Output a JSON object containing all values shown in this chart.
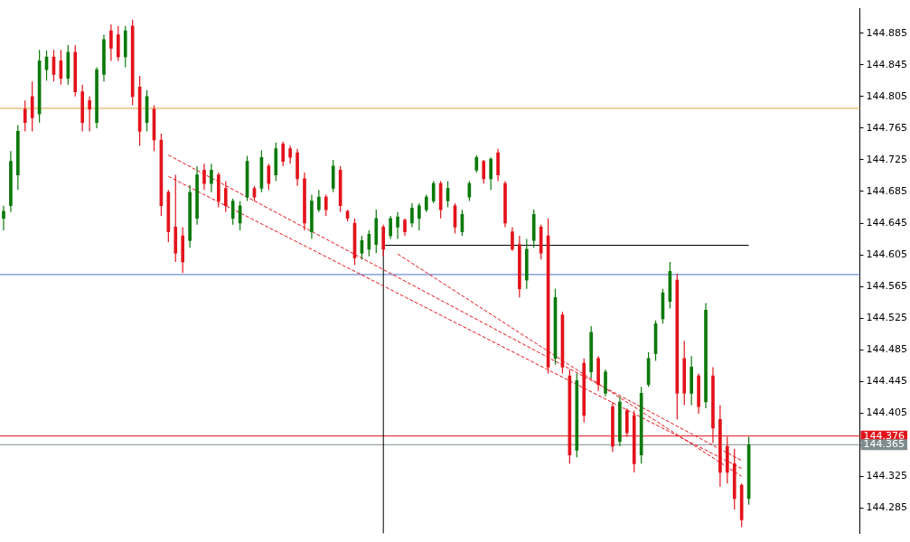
{
  "chart_data": {
    "type": "candlestick",
    "categories": [
      null,
      null,
      null,
      null,
      null,
      null,
      null,
      null,
      null,
      null,
      null,
      null,
      null,
      null,
      null,
      null,
      null,
      null,
      null,
      null,
      null,
      null,
      null,
      null,
      null,
      null,
      null,
      null,
      null,
      null,
      null,
      null,
      null,
      null,
      null,
      null,
      null,
      null,
      null,
      null,
      null,
      null,
      null,
      null,
      null,
      null,
      null,
      null,
      null,
      null,
      null,
      null,
      null,
      null,
      null,
      null,
      null,
      null,
      null,
      null,
      null,
      null,
      null,
      null,
      null,
      null,
      null,
      null,
      null,
      null,
      null,
      null,
      null,
      null,
      null,
      null,
      null,
      null,
      null,
      null,
      null,
      null,
      null,
      null,
      null,
      null,
      null,
      null,
      null,
      null,
      null,
      null,
      null,
      null,
      null,
      null,
      null,
      null,
      null,
      null,
      null,
      null,
      null,
      null,
      null,
      null,
      null,
      null,
      null,
      null,
      null,
      null,
      null,
      null,
      null,
      null,
      null,
      null,
      null,
      null
    ],
    "ohlc": [
      [
        144.651,
        144.667,
        144.636,
        144.66
      ],
      [
        144.667,
        144.736,
        144.659,
        144.723
      ],
      [
        144.706,
        144.769,
        144.687,
        144.761
      ],
      [
        144.789,
        144.8,
        144.761,
        144.772
      ],
      [
        144.805,
        144.824,
        144.761,
        144.778
      ],
      [
        144.783,
        144.864,
        144.772,
        144.85
      ],
      [
        144.839,
        144.863,
        144.825,
        144.855
      ],
      [
        144.855,
        144.864,
        144.824,
        144.833
      ],
      [
        144.85,
        144.864,
        144.82,
        144.828
      ],
      [
        144.828,
        144.87,
        144.82,
        144.861
      ],
      [
        144.861,
        144.87,
        144.805,
        144.811
      ],
      [
        144.811,
        144.82,
        144.761,
        144.772
      ],
      [
        144.8,
        144.805,
        144.761,
        144.789
      ],
      [
        144.772,
        144.842,
        144.765,
        144.839
      ],
      [
        144.833,
        144.883,
        144.824,
        144.877
      ],
      [
        144.888,
        144.896,
        144.85,
        144.866
      ],
      [
        144.883,
        144.894,
        144.85,
        144.855
      ],
      [
        144.855,
        144.894,
        144.842,
        144.888
      ],
      [
        144.894,
        144.902,
        144.794,
        144.805
      ],
      [
        144.817,
        144.831,
        144.743,
        144.761
      ],
      [
        144.772,
        144.813,
        144.761,
        144.805
      ],
      [
        144.789,
        144.794,
        144.736,
        144.75
      ],
      [
        144.75,
        144.758,
        144.654,
        144.667
      ],
      [
        144.684,
        144.687,
        144.621,
        144.634
      ],
      [
        144.64,
        144.706,
        144.596,
        144.607
      ],
      [
        144.629,
        144.64,
        144.582,
        144.596
      ],
      [
        144.623,
        144.693,
        144.614,
        144.684
      ],
      [
        144.651,
        144.717,
        144.643,
        144.706
      ],
      [
        144.712,
        144.72,
        144.687,
        144.695
      ],
      [
        144.695,
        144.72,
        144.684,
        144.712
      ],
      [
        144.706,
        144.709,
        144.665,
        144.673
      ],
      [
        144.689,
        144.698,
        144.659,
        144.667
      ],
      [
        144.651,
        144.676,
        144.643,
        144.673
      ],
      [
        144.645,
        144.673,
        144.636,
        144.667
      ],
      [
        144.678,
        144.73,
        144.673,
        144.723
      ],
      [
        144.689,
        144.692,
        144.673,
        144.678
      ],
      [
        144.689,
        144.737,
        144.684,
        144.728
      ],
      [
        144.717,
        144.72,
        144.687,
        144.695
      ],
      [
        144.706,
        144.747,
        144.698,
        144.739
      ],
      [
        144.745,
        144.748,
        144.717,
        144.723
      ],
      [
        144.739,
        144.743,
        144.72,
        144.728
      ],
      [
        144.734,
        144.739,
        144.692,
        144.701
      ],
      [
        144.701,
        144.709,
        144.636,
        144.645
      ],
      [
        144.634,
        144.681,
        144.625,
        144.673
      ],
      [
        144.662,
        144.687,
        144.659,
        144.678
      ],
      [
        144.678,
        144.681,
        144.654,
        144.662
      ],
      [
        144.689,
        144.725,
        144.684,
        144.717
      ],
      [
        144.712,
        144.717,
        144.659,
        144.667
      ],
      [
        144.66,
        144.662,
        144.647,
        144.651
      ],
      [
        144.645,
        144.651,
        144.592,
        144.601
      ],
      [
        144.607,
        144.629,
        144.599,
        144.623
      ],
      [
        144.612,
        144.636,
        144.603,
        144.631
      ],
      [
        144.618,
        144.662,
        144.607,
        144.651
      ],
      [
        144.64,
        144.643,
        144.603,
        144.612
      ],
      [
        144.629,
        144.654,
        144.625,
        144.651
      ],
      [
        144.64,
        144.659,
        144.625,
        144.653
      ],
      [
        144.649,
        144.651,
        144.629,
        144.634
      ],
      [
        144.645,
        144.67,
        144.64,
        144.664
      ],
      [
        144.651,
        144.67,
        144.636,
        144.667
      ],
      [
        144.662,
        144.681,
        144.659,
        144.678
      ],
      [
        144.673,
        144.698,
        144.67,
        144.695
      ],
      [
        144.695,
        144.698,
        144.651,
        144.662
      ],
      [
        144.673,
        144.698,
        144.665,
        144.689
      ],
      [
        144.667,
        144.67,
        144.632,
        144.64
      ],
      [
        144.634,
        144.662,
        144.629,
        144.656
      ],
      [
        144.678,
        144.698,
        144.673,
        144.695
      ],
      [
        144.712,
        144.731,
        144.709,
        144.728
      ],
      [
        144.723,
        144.725,
        144.695,
        144.701
      ],
      [
        144.701,
        144.728,
        144.687,
        144.726
      ],
      [
        144.734,
        144.739,
        144.698,
        144.706
      ],
      [
        144.695,
        144.698,
        144.64,
        144.645
      ],
      [
        144.634,
        144.64,
        144.61,
        144.612
      ],
      [
        144.618,
        144.629,
        144.551,
        144.562
      ],
      [
        144.573,
        144.625,
        144.562,
        144.612
      ],
      [
        144.623,
        144.662,
        144.614,
        144.656
      ],
      [
        144.64,
        144.643,
        144.599,
        144.607
      ],
      [
        144.629,
        144.651,
        144.455,
        144.463
      ],
      [
        144.474,
        144.562,
        144.466,
        144.551
      ],
      [
        144.529,
        144.533,
        144.455,
        144.463
      ],
      [
        144.452,
        144.46,
        144.341,
        144.352
      ],
      [
        144.358,
        144.455,
        144.349,
        144.446
      ],
      [
        144.468,
        144.474,
        144.393,
        144.402
      ],
      [
        144.457,
        144.515,
        144.449,
        144.507
      ],
      [
        144.474,
        144.477,
        144.433,
        144.441
      ],
      [
        144.43,
        144.46,
        144.426,
        144.457
      ],
      [
        144.413,
        144.419,
        144.356,
        144.363
      ],
      [
        144.369,
        144.426,
        144.363,
        144.419
      ],
      [
        144.408,
        144.411,
        144.375,
        144.38
      ],
      [
        144.402,
        144.408,
        144.33,
        144.341
      ],
      [
        144.352,
        144.438,
        144.341,
        144.43
      ],
      [
        144.441,
        144.482,
        144.438,
        144.474
      ],
      [
        144.48,
        144.522,
        144.471,
        144.518
      ],
      [
        144.524,
        144.562,
        144.518,
        144.557
      ],
      [
        144.546,
        144.596,
        144.537,
        144.584
      ],
      [
        144.573,
        144.581,
        144.397,
        144.43
      ],
      [
        144.474,
        144.496,
        144.415,
        144.43
      ],
      [
        144.43,
        144.477,
        144.415,
        144.463
      ],
      [
        144.452,
        144.455,
        144.404,
        144.413
      ],
      [
        144.419,
        144.544,
        144.411,
        144.535
      ],
      [
        144.452,
        144.463,
        144.367,
        144.386
      ],
      [
        144.397,
        144.415,
        144.312,
        144.33
      ],
      [
        144.363,
        144.375,
        144.316,
        144.33
      ],
      [
        144.341,
        144.36,
        144.283,
        144.297
      ],
      [
        144.314,
        144.316,
        144.261,
        144.27
      ],
      [
        144.297,
        144.375,
        144.289,
        144.365
      ],
      null,
      null,
      null,
      null,
      null,
      null,
      null,
      null,
      null,
      null,
      null,
      null,
      null,
      null,
      null
    ],
    "colors": [
      "#0b7a0b",
      "#0b7a0b",
      "#0b7a0b",
      "#e3131b",
      "#e3131b",
      "#0b7a0b",
      "#0b7a0b",
      "#e3131b",
      "#e3131b",
      "#0b7a0b",
      "#e3131b",
      "#e3131b",
      "#e3131b",
      "#0b7a0b",
      "#0b7a0b",
      "#e3131b",
      "#e3131b",
      "#0b7a0b",
      "#e3131b",
      "#e3131b",
      "#0b7a0b",
      "#e3131b",
      "#e3131b",
      "#e3131b",
      "#e3131b",
      "#e3131b",
      "#0b7a0b",
      "#0b7a0b",
      "#e3131b",
      "#0b7a0b",
      "#e3131b",
      "#e3131b",
      "#0b7a0b",
      "#0b7a0b",
      "#0b7a0b",
      "#e3131b",
      "#0b7a0b",
      "#e3131b",
      "#0b7a0b",
      "#e3131b",
      "#e3131b",
      "#e3131b",
      "#e3131b",
      "#0b7a0b",
      "#0b7a0b",
      "#e3131b",
      "#0b7a0b",
      "#e3131b",
      "#e3131b",
      "#e3131b",
      "#0b7a0b",
      "#0b7a0b",
      "#0b7a0b",
      "#e3131b",
      "#0b7a0b",
      "#0b7a0b",
      "#e3131b",
      "#0b7a0b",
      "#0b7a0b",
      "#0b7a0b",
      "#0b7a0b",
      "#e3131b",
      "#0b7a0b",
      "#e3131b",
      "#0b7a0b",
      "#0b7a0b",
      "#0b7a0b",
      "#e3131b",
      "#0b7a0b",
      "#e3131b",
      "#e3131b",
      "#e3131b",
      "#e3131b",
      "#0b7a0b",
      "#0b7a0b",
      "#e3131b",
      "#e3131b",
      "#0b7a0b",
      "#e3131b",
      "#e3131b",
      "#0b7a0b",
      "#e3131b",
      "#0b7a0b",
      "#e3131b",
      "#0b7a0b",
      "#e3131b",
      "#0b7a0b",
      "#e3131b",
      "#e3131b",
      "#0b7a0b",
      "#0b7a0b",
      "#0b7a0b",
      "#0b7a0b",
      "#0b7a0b",
      "#e3131b",
      "#e3131b",
      "#0b7a0b",
      "#e3131b",
      "#0b7a0b",
      "#e3131b",
      "#e3131b",
      "#e3131b",
      "#e3131b",
      "#e3131b",
      "#0b7a0b",
      null,
      null,
      null,
      null,
      null,
      null,
      null,
      null,
      null,
      null,
      null,
      null,
      null,
      null,
      null
    ],
    "series": [
      {
        "type": "line",
        "color": "#e3131b",
        "line_style": "dashed",
        "values": [
          null,
          null,
          null,
          null,
          null,
          null,
          null,
          null,
          null,
          null,
          null,
          null,
          null,
          null,
          null,
          null,
          null,
          null,
          null,
          null,
          null,
          null,
          null,
          144.731,
          null,
          null,
          null,
          null,
          null,
          null,
          null,
          null,
          null,
          null,
          null,
          null,
          null,
          null,
          null,
          null,
          null,
          null,
          null,
          null,
          null,
          null,
          null,
          null,
          null,
          null,
          null,
          null,
          null,
          null,
          null,
          null,
          null,
          null,
          null,
          null,
          null,
          null,
          null,
          null,
          null,
          null,
          null,
          null,
          null,
          null,
          null,
          null,
          null,
          null,
          null,
          null,
          null,
          null,
          null,
          null,
          null,
          null,
          null,
          null,
          null,
          null,
          null,
          null,
          null,
          null,
          null,
          null,
          null,
          null,
          null,
          null,
          null,
          null,
          null,
          null,
          null,
          null,
          null,
          144.345,
          null,
          null,
          null,
          null,
          null,
          null,
          null,
          null,
          null,
          null,
          null,
          null,
          null,
          null,
          null,
          null
        ]
      },
      {
        "type": "line",
        "color": "#e3131b",
        "line_style": "dashed",
        "values": [
          null,
          null,
          null,
          null,
          null,
          null,
          null,
          null,
          null,
          null,
          null,
          null,
          null,
          null,
          null,
          null,
          null,
          null,
          null,
          null,
          null,
          null,
          null,
          144.704,
          null,
          null,
          null,
          null,
          null,
          null,
          null,
          null,
          null,
          null,
          null,
          null,
          null,
          null,
          null,
          null,
          null,
          null,
          null,
          null,
          null,
          null,
          null,
          null,
          null,
          null,
          null,
          null,
          null,
          null,
          null,
          null,
          null,
          null,
          null,
          null,
          null,
          null,
          null,
          null,
          null,
          null,
          null,
          null,
          null,
          null,
          null,
          null,
          null,
          null,
          null,
          null,
          null,
          null,
          null,
          null,
          null,
          null,
          null,
          null,
          null,
          null,
          null,
          null,
          null,
          null,
          null,
          null,
          null,
          null,
          null,
          null,
          null,
          null,
          null,
          null,
          null,
          null,
          null,
          144.335,
          null,
          null,
          null,
          null,
          null,
          null,
          null,
          null,
          null,
          null,
          null,
          null,
          null,
          null,
          null,
          null
        ]
      },
      {
        "type": "line",
        "color": "#e3131b",
        "line_style": "dashed",
        "values": [
          null,
          null,
          null,
          null,
          null,
          null,
          null,
          null,
          null,
          null,
          null,
          null,
          null,
          null,
          null,
          null,
          null,
          null,
          null,
          null,
          null,
          null,
          null,
          null,
          null,
          null,
          null,
          null,
          null,
          null,
          null,
          null,
          null,
          null,
          null,
          null,
          null,
          null,
          null,
          null,
          null,
          null,
          null,
          null,
          null,
          null,
          null,
          null,
          null,
          null,
          null,
          null,
          null,
          null,
          null,
          144.606,
          null,
          null,
          null,
          null,
          null,
          null,
          null,
          null,
          null,
          null,
          null,
          null,
          null,
          null,
          null,
          null,
          null,
          null,
          null,
          null,
          null,
          null,
          null,
          null,
          null,
          null,
          null,
          null,
          null,
          null,
          null,
          null,
          null,
          null,
          null,
          null,
          null,
          null,
          null,
          null,
          null,
          null,
          null,
          null,
          null,
          null,
          null,
          144.325,
          null,
          null,
          null,
          null,
          null,
          null,
          null,
          null,
          null,
          null,
          null,
          null,
          null,
          null,
          null,
          null
        ]
      },
      {
        "type": "line",
        "color": "#000000",
        "line_style": "solid",
        "values": [
          null,
          null,
          null,
          null,
          null,
          null,
          null,
          null,
          null,
          null,
          null,
          null,
          null,
          null,
          null,
          null,
          null,
          null,
          null,
          null,
          null,
          null,
          null,
          null,
          null,
          null,
          null,
          null,
          null,
          null,
          null,
          null,
          null,
          null,
          null,
          null,
          null,
          null,
          null,
          null,
          null,
          null,
          null,
          null,
          null,
          null,
          null,
          null,
          null,
          null,
          null,
          null,
          null,
          144.617,
          null,
          null,
          null,
          null,
          null,
          null,
          null,
          null,
          null,
          null,
          null,
          null,
          null,
          null,
          null,
          null,
          null,
          null,
          null,
          null,
          null,
          null,
          null,
          null,
          null,
          null,
          null,
          null,
          null,
          null,
          null,
          null,
          null,
          null,
          null,
          null,
          null,
          null,
          null,
          null,
          null,
          null,
          null,
          null,
          null,
          null,
          null,
          null,
          null,
          null,
          144.617,
          null,
          null,
          null,
          null,
          null,
          null,
          null,
          null,
          null,
          null,
          null,
          null,
          null,
          null,
          null
        ]
      }
    ],
    "ref_lines": [
      {
        "axis": "y",
        "value": 144.79,
        "color": "#d9a441"
      },
      {
        "axis": "y",
        "value": 144.58,
        "color": "#4a6fc9"
      },
      {
        "axis": "y",
        "value": 144.376,
        "label": "144.376",
        "color": "#e3131b"
      },
      {
        "axis": "y",
        "value": 144.365,
        "label": "144.365",
        "color": "#7f8c8d"
      }
    ],
    "ylim": [
      144.253,
      144.916
    ],
    "yticks": [
      144.285,
      144.325,
      144.365,
      144.405,
      144.445,
      144.485,
      144.525,
      144.565,
      144.605,
      144.645,
      144.685,
      144.725,
      144.765,
      144.805,
      144.845,
      144.885
    ],
    "tick_labels": "y",
    "grid": false,
    "legend": false,
    "marker": "none"
  }
}
